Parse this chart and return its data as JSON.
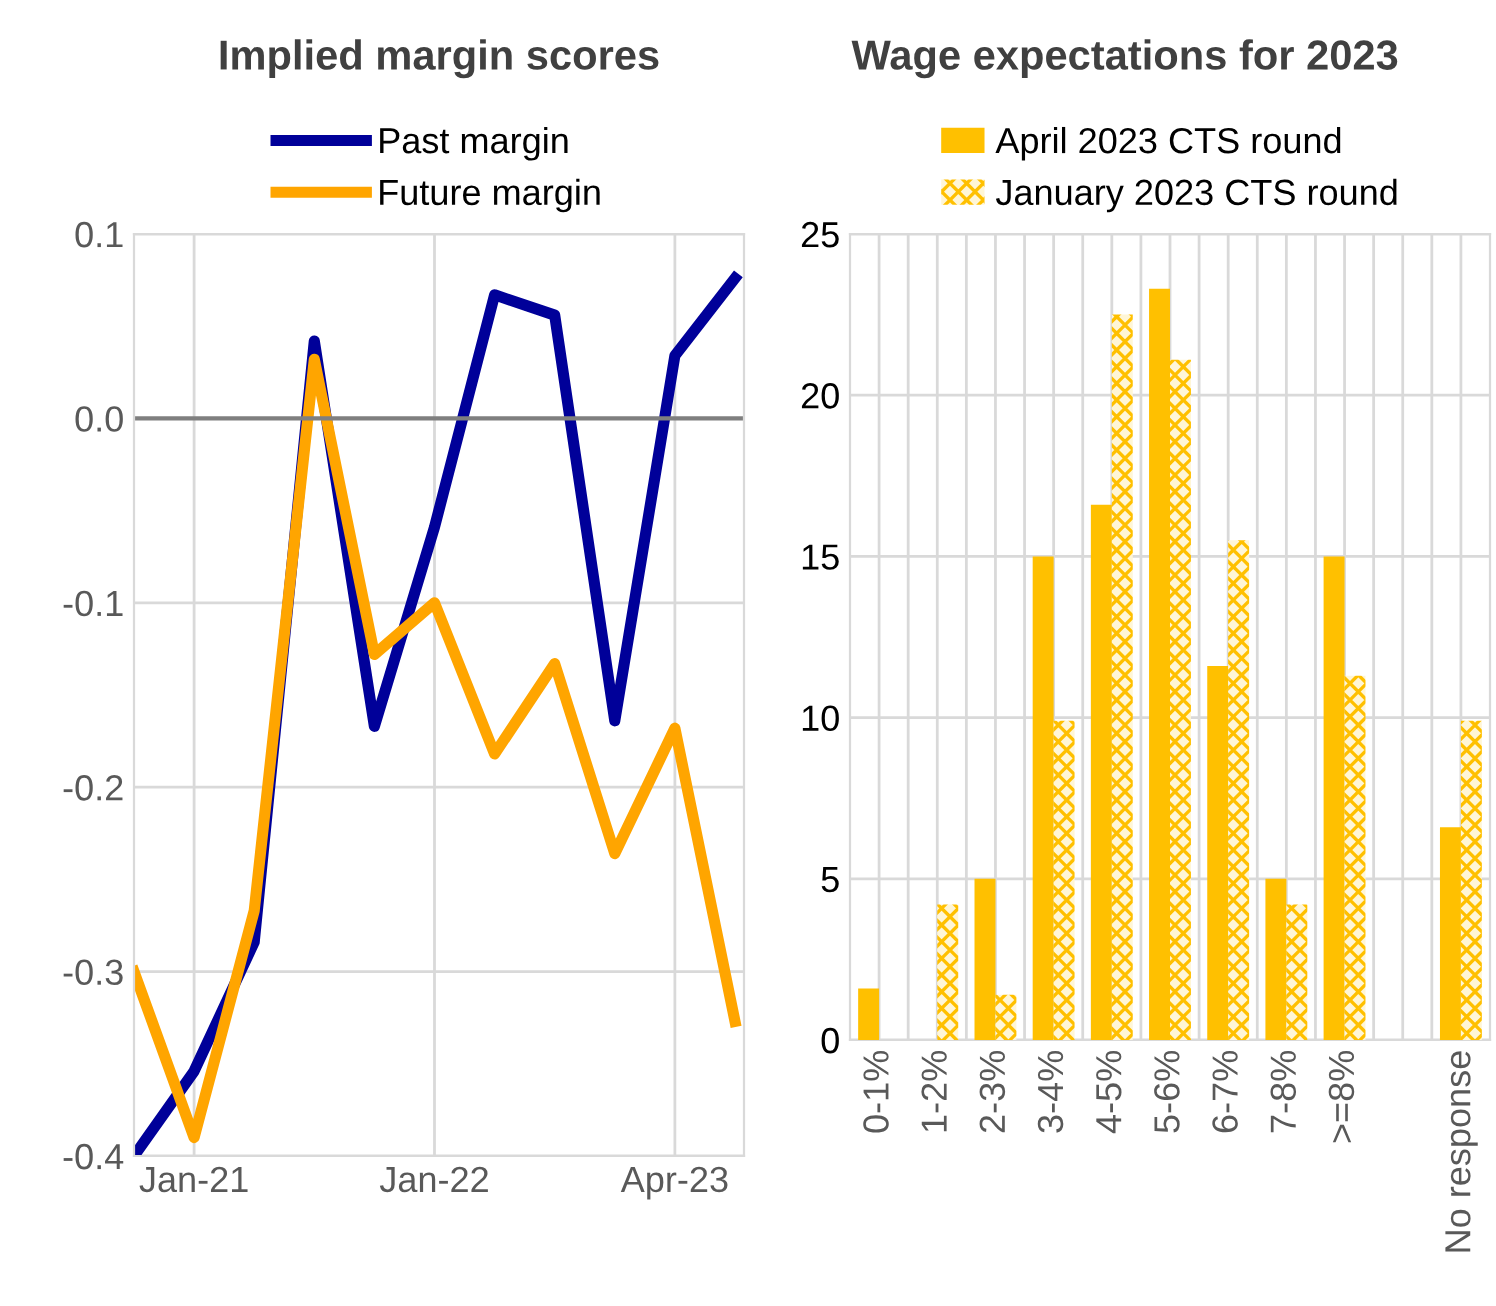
{
  "chart_data": [
    {
      "type": "line",
      "title": "Implied margin scores",
      "categories": [
        null,
        "Jan-21",
        null,
        null,
        null,
        "Jan-22",
        null,
        null,
        null,
        "Apr-23",
        null
      ],
      "series": [
        {
          "name": "Past margin",
          "color": "#000099",
          "values": [
            -0.4,
            -0.354,
            -0.284,
            0.042,
            -0.167,
            -0.059,
            0.067,
            0.056,
            -0.164,
            0.034,
            0.076
          ]
        },
        {
          "name": "Future margin",
          "color": "#ffa500",
          "values": [
            -0.3,
            -0.39,
            -0.267,
            0.032,
            -0.128,
            -0.1,
            -0.182,
            -0.133,
            -0.236,
            -0.168,
            -0.327
          ]
        }
      ],
      "ylim": [
        -0.4,
        0.1
      ],
      "yticks": [
        {
          "value": 0.1,
          "label": "0.1"
        },
        {
          "value": 0,
          "label": "0.0"
        },
        {
          "value": -0.1,
          "label": "-0.1"
        },
        {
          "value": -0.2,
          "label": "-0.2"
        },
        {
          "value": -0.3,
          "label": "-0.3"
        },
        {
          "value": -0.4,
          "label": "-0.4"
        }
      ],
      "ref_lines": [
        {
          "axis": "y",
          "value": 0,
          "color": "#7f7f7f"
        }
      ],
      "grid": true,
      "legend": "top",
      "marker": "none",
      "line_style": "solid"
    },
    {
      "type": "bar",
      "title": "Wage expectations for 2023",
      "categories": [
        "0-1%",
        "1-2%",
        "2-3%",
        "3-4%",
        "4-5%",
        "5-6%",
        "6-7%",
        "7-8%",
        ">=8%",
        null,
        "No response"
      ],
      "series": [
        {
          "name": "April 2023 CTS round",
          "color": "#ffc000",
          "values": [
            1.6,
            0,
            5,
            15,
            16.6,
            23.3,
            11.6,
            5,
            15,
            null,
            6.6
          ]
        },
        {
          "name": "January 2023 CTS round",
          "color": "#ffc000",
          "values": [
            0,
            4.2,
            1.4,
            9.9,
            22.5,
            21.1,
            15.5,
            4.2,
            11.3,
            null,
            9.9
          ]
        }
      ],
      "ylim": [
        0,
        25
      ],
      "yticks": [
        0,
        5,
        10,
        15,
        20,
        25
      ],
      "grid": true,
      "legend": "top"
    }
  ]
}
